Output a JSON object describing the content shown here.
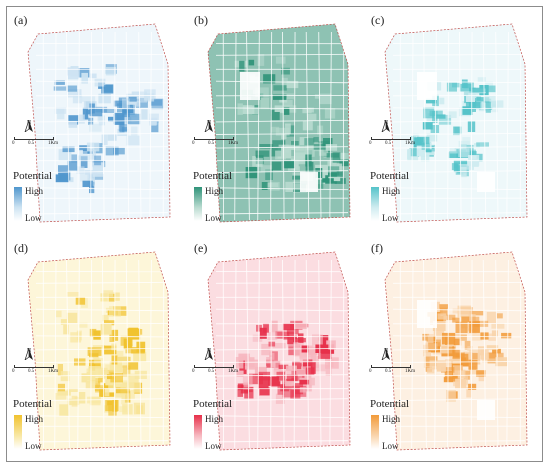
{
  "panels": [
    {
      "label": "(a)",
      "fill": "#eef6fb",
      "lo": "#cde3f2",
      "hi": "#4f96cd",
      "variant": "a"
    },
    {
      "label": "(b)",
      "fill": "#8ec2b3",
      "lo": "#b9dbd0",
      "hi": "#2f9379",
      "variant": "b"
    },
    {
      "label": "(c)",
      "fill": "#eef8fa",
      "lo": "#cfecf0",
      "hi": "#55c3c9",
      "variant": "c"
    },
    {
      "label": "(d)",
      "fill": "#fdf6d9",
      "lo": "#f8e7a3",
      "hi": "#f1c22e",
      "variant": "d"
    },
    {
      "label": "(e)",
      "fill": "#fbdde1",
      "lo": "#f6b7bf",
      "hi": "#e7304a",
      "variant": "e"
    },
    {
      "label": "(f)",
      "fill": "#fdf0e2",
      "lo": "#f9d4ab",
      "hi": "#f29b3a",
      "variant": "f"
    }
  ],
  "legend": {
    "title": "Potential",
    "high": "High",
    "low": "Low"
  },
  "scale": {
    "t0": "0",
    "t1": "0.5",
    "t2": "1Km"
  },
  "north": "N"
}
